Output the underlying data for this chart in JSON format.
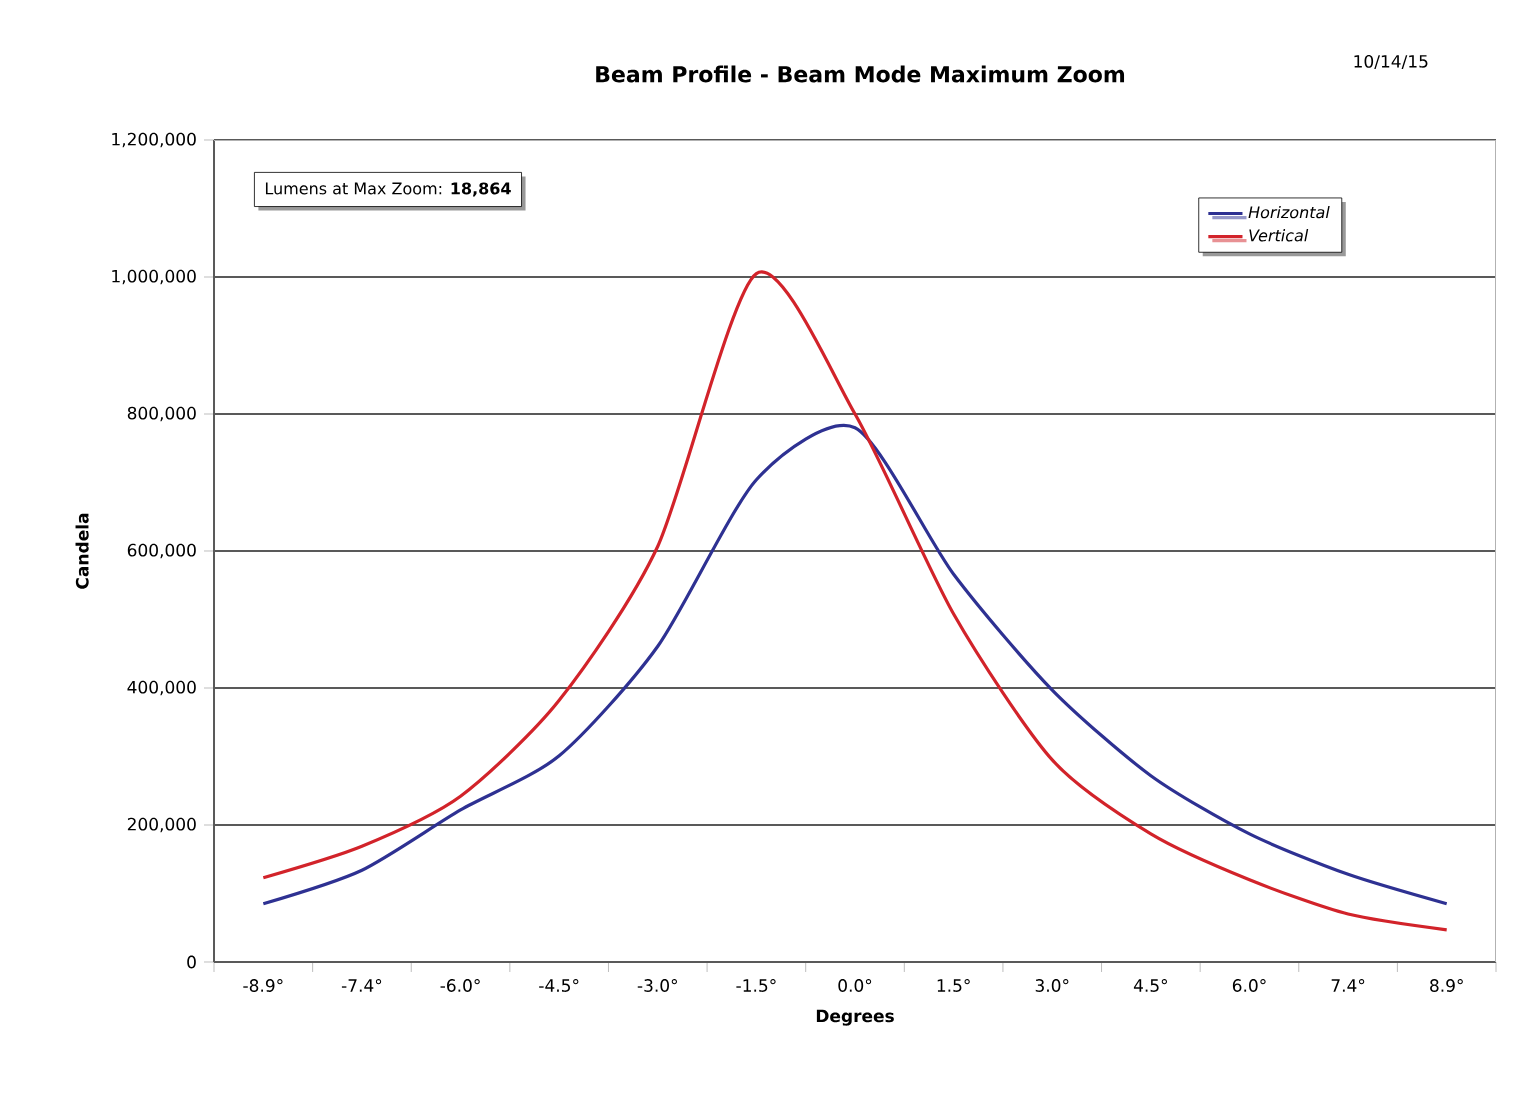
{
  "chart_data": {
    "type": "line",
    "title": "Beam Profile - Beam Mode Maximum Zoom",
    "xlabel": "Degrees",
    "ylabel": "Candela",
    "annotations": [
      "10/14/15",
      "Lumens at Max Zoom:  **18,864**"
    ],
    "categories": [
      "-8.9°",
      "-7.4°",
      "-6.0°",
      "-4.5°",
      "-3.0°",
      "-1.5°",
      "0.0°",
      "1.5°",
      "3.0°",
      "4.5°",
      "6.0°",
      "7.4°",
      "8.9°"
    ],
    "series": [
      {
        "name": "Horizontal",
        "color": "#2e3192",
        "values": [
          85000,
          134000,
          222000,
          301000,
          461000,
          704000,
          780000,
          566000,
          397000,
          272000,
          187000,
          128000,
          85000
        ]
      },
      {
        "name": "Vertical",
        "color": "#d2232a",
        "values": [
          123000,
          169000,
          242000,
          382000,
          607000,
          1005000,
          800000,
          508000,
          295000,
          187000,
          120000,
          70000,
          47000
        ]
      }
    ],
    "ylim": [
      0,
      1200000
    ],
    "yticks": [
      {
        "value": 0,
        "label": "0"
      },
      {
        "value": 200000,
        "label": "200,000"
      },
      {
        "value": 400000,
        "label": "400,000"
      },
      {
        "value": 600000,
        "label": "600,000"
      },
      {
        "value": 800000,
        "label": "800,000"
      },
      {
        "value": 1000000,
        "label": "1,000,000"
      },
      {
        "value": 1200000,
        "label": "1,200,000"
      }
    ],
    "grid": "y",
    "legend": "top right",
    "marker": "none",
    "line_style": "solid"
  }
}
